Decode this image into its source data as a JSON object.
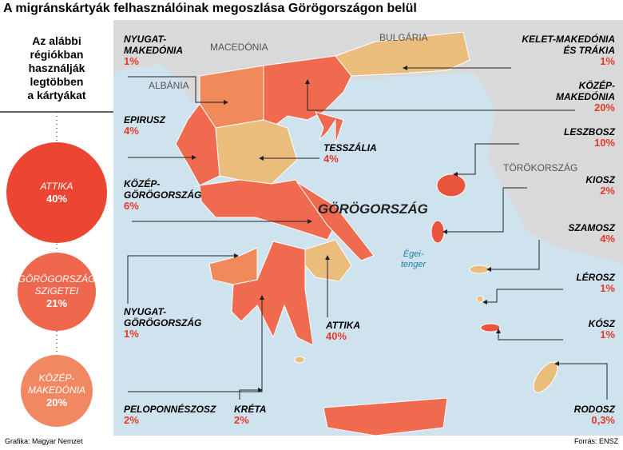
{
  "title": "A migránskártyák felhasználóinak megoszlása Görögországon belül",
  "sidebar": {
    "heading": "Az alábbi\nrégiókban\nhasználják\nlegtöbben\na kártyákat",
    "top": [
      {
        "name": "ATTIKA",
        "value": "40%"
      },
      {
        "name": "GÖRÖGORSZÁG\nSZIGETEI",
        "value": "21%"
      },
      {
        "name": "KÖZÉP-\nMAKEDÓNIA",
        "value": "20%"
      }
    ]
  },
  "map_labels": {
    "countries": [
      "MACEDÓNIA",
      "BULGÁRIA",
      "ALBÁNIA",
      "TÖRÖKORSZÁG",
      "GÖRÖGORSZÁG"
    ],
    "sea": "Égei-\ntenger"
  },
  "regions": [
    {
      "name": "NYUGAT-\nMAKEDÓNIA",
      "value": "1%"
    },
    {
      "name": "EPIRUSZ",
      "value": "4%"
    },
    {
      "name": "KÖZÉP-\nGÖRÖGORSZÁG",
      "value": "6%"
    },
    {
      "name": "NYUGAT-\nGÖRÖGORSZÁG",
      "value": "1%"
    },
    {
      "name": "PELOPONNÉSZOSZ",
      "value": "2%"
    },
    {
      "name": "KRÉTA",
      "value": "2%"
    },
    {
      "name": "ATTIKA",
      "value": "40%"
    },
    {
      "name": "TESSZÁLIA",
      "value": "4%"
    },
    {
      "name": "KELET-MAKEDÓNIA\nÉS TRÁKIA",
      "value": "1%"
    },
    {
      "name": "KÖZÉP-\nMAKEDÓNIA",
      "value": "20%"
    },
    {
      "name": "LESZBOSZ",
      "value": "10%"
    },
    {
      "name": "KIOSZ",
      "value": "2%"
    },
    {
      "name": "SZAMOSZ",
      "value": "4%"
    },
    {
      "name": "LÉROSZ",
      "value": "1%"
    },
    {
      "name": "KÓSZ",
      "value": "1%"
    },
    {
      "name": "RODOSZ",
      "value": "0,3%"
    }
  ],
  "credit": "Grafika: Magyar Nemzet",
  "source": "Forrás: ENSZ"
}
